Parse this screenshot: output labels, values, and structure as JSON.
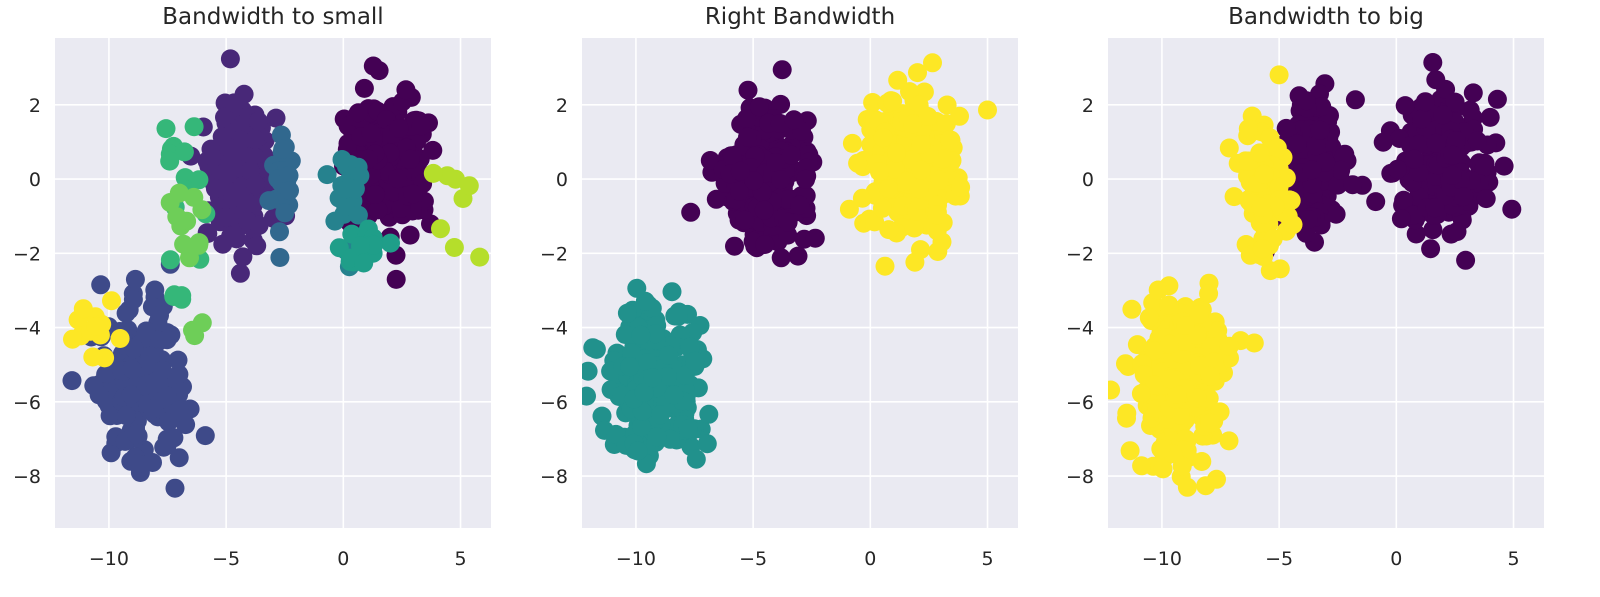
{
  "chart_data": [
    {
      "type": "scatter",
      "title": "Bandwidth to small",
      "xlabel": "",
      "ylabel": "",
      "xlim": [
        -12.3,
        6.3
      ],
      "ylim": [
        -9.4,
        3.8
      ],
      "xticks": [
        "−10",
        "−5",
        "0",
        "5"
      ],
      "xtick_values": [
        -10,
        -5,
        0,
        5
      ],
      "yticks": [
        "2",
        "0",
        "−2",
        "−4",
        "−6",
        "−8"
      ],
      "ytick_values": [
        2,
        0,
        -2,
        -4,
        -6,
        -8
      ],
      "grid": true,
      "clusters": [
        {
          "color": "#482878",
          "center": [
            -4.5,
            0.2
          ],
          "spread": [
            0.75,
            0.95
          ],
          "count": 190
        },
        {
          "color": "#440154",
          "center": [
            2.0,
            0.4
          ],
          "spread": [
            0.9,
            0.9
          ],
          "count": 190
        },
        {
          "color": "#3e4a89",
          "center": [
            -8.6,
            -5.6
          ],
          "spread": [
            0.95,
            1.1
          ],
          "count": 190
        },
        {
          "color": "#31688e",
          "center": [
            -2.6,
            0.0
          ],
          "spread": [
            0.25,
            0.8
          ],
          "count": 22
        },
        {
          "color": "#26828e",
          "center": [
            0.2,
            -0.3
          ],
          "spread": [
            0.4,
            0.8
          ],
          "count": 22
        },
        {
          "color": "#1f9e89",
          "center": [
            0.9,
            -1.8
          ],
          "spread": [
            0.7,
            0.35
          ],
          "count": 16
        },
        {
          "color": "#35b779",
          "center": [
            -7.0,
            -0.4
          ],
          "spread": [
            0.55,
            1.0
          ],
          "count": 16
        },
        {
          "color": "#35b779",
          "center": [
            -7.2,
            -3.0
          ],
          "spread": [
            0.2,
            0.2
          ],
          "count": 3
        },
        {
          "color": "#6ece58",
          "center": [
            -6.8,
            -1.2
          ],
          "spread": [
            0.5,
            0.5
          ],
          "count": 12
        },
        {
          "color": "#6ece58",
          "center": [
            -6.3,
            -4.1
          ],
          "spread": [
            0.15,
            0.1
          ],
          "count": 3
        },
        {
          "color": "#b5de2b",
          "center": [
            4.8,
            -0.9
          ],
          "spread": [
            0.5,
            0.6
          ],
          "count": 8
        },
        {
          "color": "#fde725",
          "center": [
            -10.9,
            -4.1
          ],
          "spread": [
            0.5,
            0.35
          ],
          "count": 14
        }
      ]
    },
    {
      "type": "scatter",
      "title": "Right Bandwidth",
      "xlabel": "",
      "ylabel": "",
      "xlim": [
        -12.3,
        6.3
      ],
      "ylim": [
        -9.4,
        3.8
      ],
      "xticks": [
        "−10",
        "−5",
        "0",
        "5"
      ],
      "xtick_values": [
        -10,
        -5,
        0,
        5
      ],
      "yticks": [
        "2",
        "0",
        "−2",
        "−4",
        "−6",
        "−8"
      ],
      "ytick_values": [
        2,
        0,
        -2,
        -4,
        -6,
        -8
      ],
      "grid": true,
      "clusters": [
        {
          "color": "#440154",
          "center": [
            -4.5,
            0.1
          ],
          "spread": [
            0.95,
            0.95
          ],
          "count": 230
        },
        {
          "color": "#fde725",
          "center": [
            1.8,
            0.3
          ],
          "spread": [
            1.05,
            0.95
          ],
          "count": 230
        },
        {
          "color": "#21918c",
          "center": [
            -9.2,
            -5.5
          ],
          "spread": [
            1.0,
            1.15
          ],
          "count": 230
        }
      ]
    },
    {
      "type": "scatter",
      "title": "Bandwidth to big",
      "xlabel": "",
      "ylabel": "",
      "xlim": [
        -12.3,
        6.3
      ],
      "ylim": [
        -9.4,
        3.8
      ],
      "xticks": [
        "−10",
        "−5",
        "0",
        "5"
      ],
      "xtick_values": [
        -10,
        -5,
        0,
        5
      ],
      "yticks": [
        "2",
        "0",
        "−2",
        "−4",
        "−6",
        "−8"
      ],
      "ytick_values": [
        2,
        0,
        -2,
        -4,
        -6,
        -8
      ],
      "grid": true,
      "clusters": [
        {
          "color": "#440154",
          "center": [
            -3.6,
            0.2
          ],
          "spread": [
            0.75,
            0.95
          ],
          "count": 160
        },
        {
          "color": "#fde725",
          "center": [
            -5.6,
            -0.3
          ],
          "spread": [
            0.55,
            0.95
          ],
          "count": 90
        },
        {
          "color": "#440154",
          "center": [
            2.0,
            0.3
          ],
          "spread": [
            1.05,
            0.95
          ],
          "count": 230
        },
        {
          "color": "#fde725",
          "center": [
            -9.2,
            -5.5
          ],
          "spread": [
            1.0,
            1.15
          ],
          "count": 230
        }
      ]
    }
  ]
}
